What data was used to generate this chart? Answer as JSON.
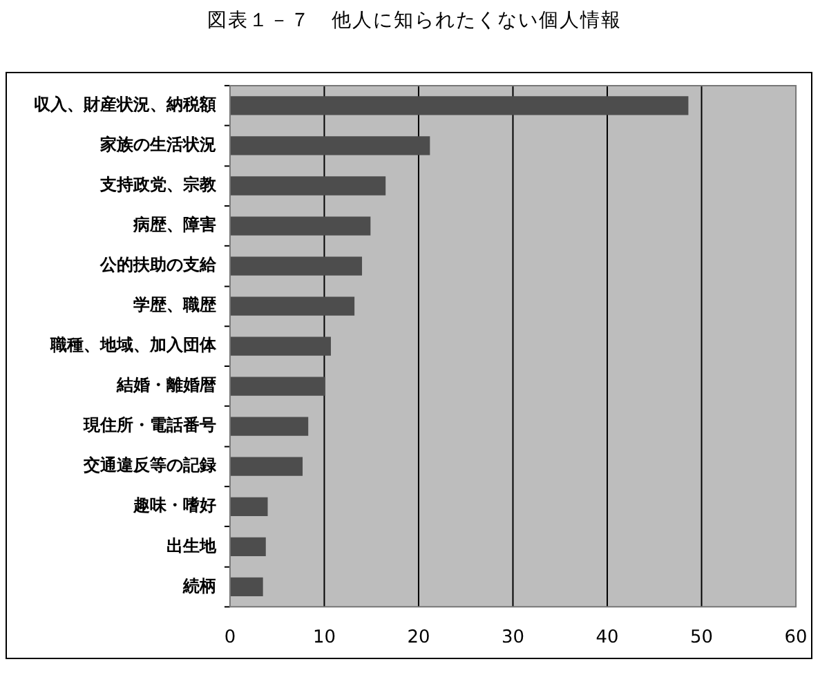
{
  "chart_data": {
    "type": "bar",
    "title": "図表１－７　他人に知られたくない個人情報",
    "orientation": "horizontal",
    "categories": [
      "収入、財産状況、納税額",
      "家族の生活状況",
      "支持政党、宗教",
      "病歴、障害",
      "公的扶助の支給",
      "学歴、職歴",
      "職種、地域、加入団体",
      "結婚・離婚暦",
      "現住所・電話番号",
      "交通違反等の記録",
      "趣味・嗜好",
      "出生地",
      "続柄"
    ],
    "values": [
      48.6,
      21.2,
      16.5,
      14.9,
      14.0,
      13.2,
      10.7,
      10.1,
      8.3,
      7.7,
      4.0,
      3.8,
      3.5
    ],
    "color": "#4d4d4d",
    "xlim": [
      0,
      60
    ],
    "xticks": [
      0,
      10,
      20,
      30,
      40,
      50,
      60
    ],
    "grid": "x"
  }
}
